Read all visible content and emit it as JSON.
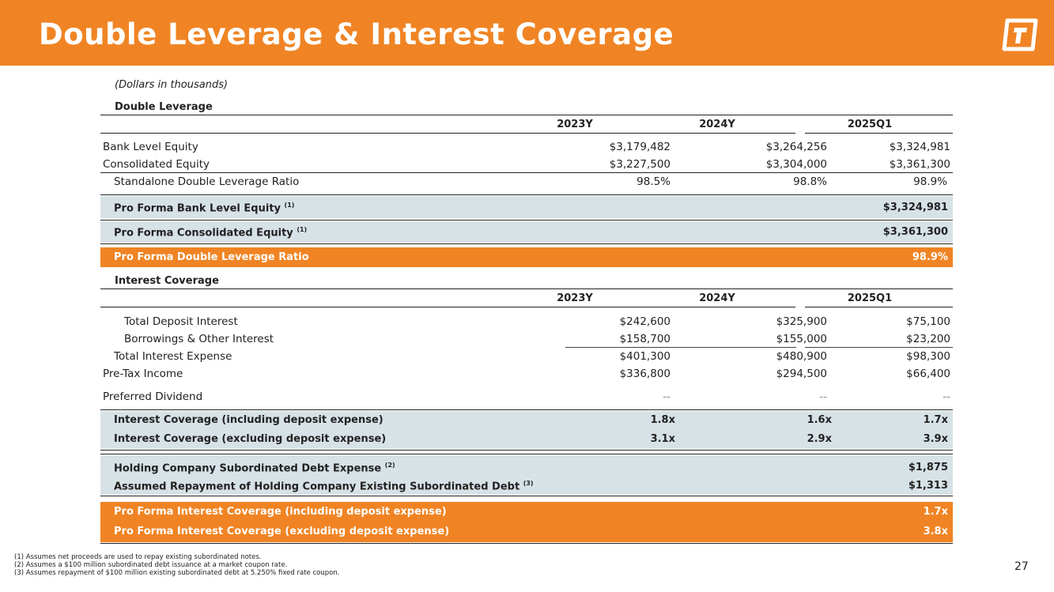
{
  "header": {
    "title": "Double Leverage & Interest Coverage",
    "logo": "company-logo",
    "accent_color": "#f08424"
  },
  "units_note": "(Dollars in thousands)",
  "double_leverage": {
    "section_title": "Double Leverage",
    "columns": [
      "2023Y",
      "2024Y",
      "2025Q1"
    ],
    "rows": [
      {
        "label": "Bank Level Equity",
        "values": [
          "$3,179,482",
          "$3,264,256",
          "$3,324,981"
        ]
      },
      {
        "label": "Consolidated Equity",
        "values": [
          "$3,227,500",
          "$3,304,000",
          "$3,361,300"
        ]
      },
      {
        "label": "Standalone Double Leverage Ratio",
        "values": [
          "98.5%",
          "98.8%",
          "98.9%"
        ]
      }
    ],
    "pro_forma_bank_equity": {
      "label": "Pro Forma Bank Level Equity",
      "note": "(1)",
      "value": "$3,324,981"
    },
    "pro_forma_consolidated_equity": {
      "label": "Pro Forma Consolidated Equity",
      "note": "(1)",
      "value": "$3,361,300"
    },
    "pro_forma_ratio": {
      "label": "Pro Forma Double Leverage Ratio",
      "value": "98.9%"
    }
  },
  "interest_coverage": {
    "section_title": "Interest Coverage",
    "columns": [
      "2023Y",
      "2024Y",
      "2025Q1"
    ],
    "rows": [
      {
        "label": "Total Deposit Interest",
        "values": [
          "$242,600",
          "$325,900",
          "$75,100"
        ]
      },
      {
        "label": "Borrowings & Other Interest",
        "values": [
          "$158,700",
          "$155,000",
          "$23,200"
        ]
      },
      {
        "label": "Total Interest Expense",
        "values": [
          "$401,300",
          "$480,900",
          "$98,300"
        ]
      },
      {
        "label": "Pre-Tax Income",
        "values": [
          "$336,800",
          "$294,500",
          "$66,400"
        ]
      },
      {
        "label": "Preferred Dividend",
        "values": [
          "--",
          "--",
          "--"
        ]
      }
    ],
    "coverage_rows": [
      {
        "label": "Interest Coverage (including deposit expense)",
        "values": [
          "1.8x",
          "1.6x",
          "1.7x"
        ]
      },
      {
        "label": "Interest Coverage (excluding deposit expense)",
        "values": [
          "3.1x",
          "2.9x",
          "3.9x"
        ]
      }
    ],
    "holdco_debt_expense": {
      "label": "Holding Company Subordinated Debt Expense",
      "note": "(2)",
      "value": "$1,875"
    },
    "assumed_repayment": {
      "label": "Assumed Repayment of Holding Company Existing Subordinated Debt",
      "note": "(3)",
      "value": "$1,313"
    },
    "pro_forma_rows": [
      {
        "label": "Pro Forma Interest Coverage (including deposit expense)",
        "value": "1.7x"
      },
      {
        "label": "Pro Forma Interest Coverage (excluding deposit expense)",
        "value": "3.8x"
      }
    ]
  },
  "footnotes": [
    "(1)   Assumes net proceeds are used to repay existing subordinated notes.",
    "(2)   Assumes a $100 million subordinated debt issuance at a market coupon rate.",
    "(3)   Assumes repayment of $100 million existing subordinated debt at 5.250% fixed rate coupon."
  ],
  "page_number": "27"
}
